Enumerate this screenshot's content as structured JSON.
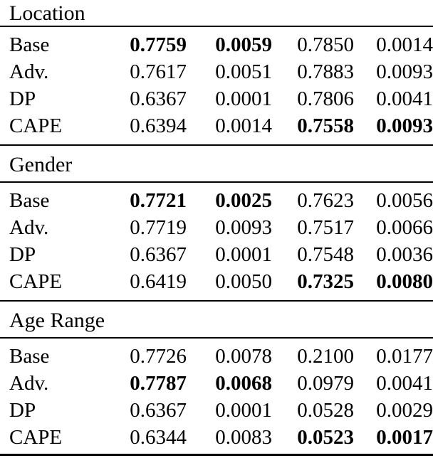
{
  "page": {
    "background_color": "#ffffff",
    "text_color": "#000000",
    "rule_color": "#000000"
  },
  "table": {
    "sections": [
      {
        "title": "Location",
        "rows": [
          {
            "label": "Base",
            "values": [
              "0.7759",
              "0.0059",
              "0.7850",
              "0.0014"
            ],
            "bold": [
              true,
              true,
              false,
              false
            ]
          },
          {
            "label": "Adv.",
            "values": [
              "0.7617",
              "0.0051",
              "0.7883",
              "0.0093"
            ],
            "bold": [
              false,
              false,
              false,
              false
            ]
          },
          {
            "label": "DP",
            "values": [
              "0.6367",
              "0.0001",
              "0.7806",
              "0.0041"
            ],
            "bold": [
              false,
              false,
              false,
              false
            ]
          },
          {
            "label": "CAPE",
            "values": [
              "0.6394",
              "0.0014",
              "0.7558",
              "0.0093"
            ],
            "bold": [
              false,
              false,
              true,
              true
            ]
          }
        ]
      },
      {
        "title": "Gender",
        "rows": [
          {
            "label": "Base",
            "values": [
              "0.7721",
              "0.0025",
              "0.7623",
              "0.0056"
            ],
            "bold": [
              true,
              true,
              false,
              false
            ]
          },
          {
            "label": "Adv.",
            "values": [
              "0.7719",
              "0.0093",
              "0.7517",
              "0.0066"
            ],
            "bold": [
              false,
              false,
              false,
              false
            ]
          },
          {
            "label": "DP",
            "values": [
              "0.6367",
              "0.0001",
              "0.7548",
              "0.0036"
            ],
            "bold": [
              false,
              false,
              false,
              false
            ]
          },
          {
            "label": "CAPE",
            "values": [
              "0.6419",
              "0.0050",
              "0.7325",
              "0.0080"
            ],
            "bold": [
              false,
              false,
              true,
              true
            ]
          }
        ]
      },
      {
        "title": "Age Range",
        "rows": [
          {
            "label": "Base",
            "values": [
              "0.7726",
              "0.0078",
              "0.2100",
              "0.0177"
            ],
            "bold": [
              false,
              false,
              false,
              false
            ]
          },
          {
            "label": "Adv.",
            "values": [
              "0.7787",
              "0.0068",
              "0.0979",
              "0.0041"
            ],
            "bold": [
              true,
              true,
              false,
              false
            ]
          },
          {
            "label": "DP",
            "values": [
              "0.6367",
              "0.0001",
              "0.0528",
              "0.0029"
            ],
            "bold": [
              false,
              false,
              false,
              false
            ]
          },
          {
            "label": "CAPE",
            "values": [
              "0.6344",
              "0.0083",
              "0.0523",
              "0.0017"
            ],
            "bold": [
              false,
              false,
              true,
              true
            ]
          }
        ]
      }
    ]
  }
}
